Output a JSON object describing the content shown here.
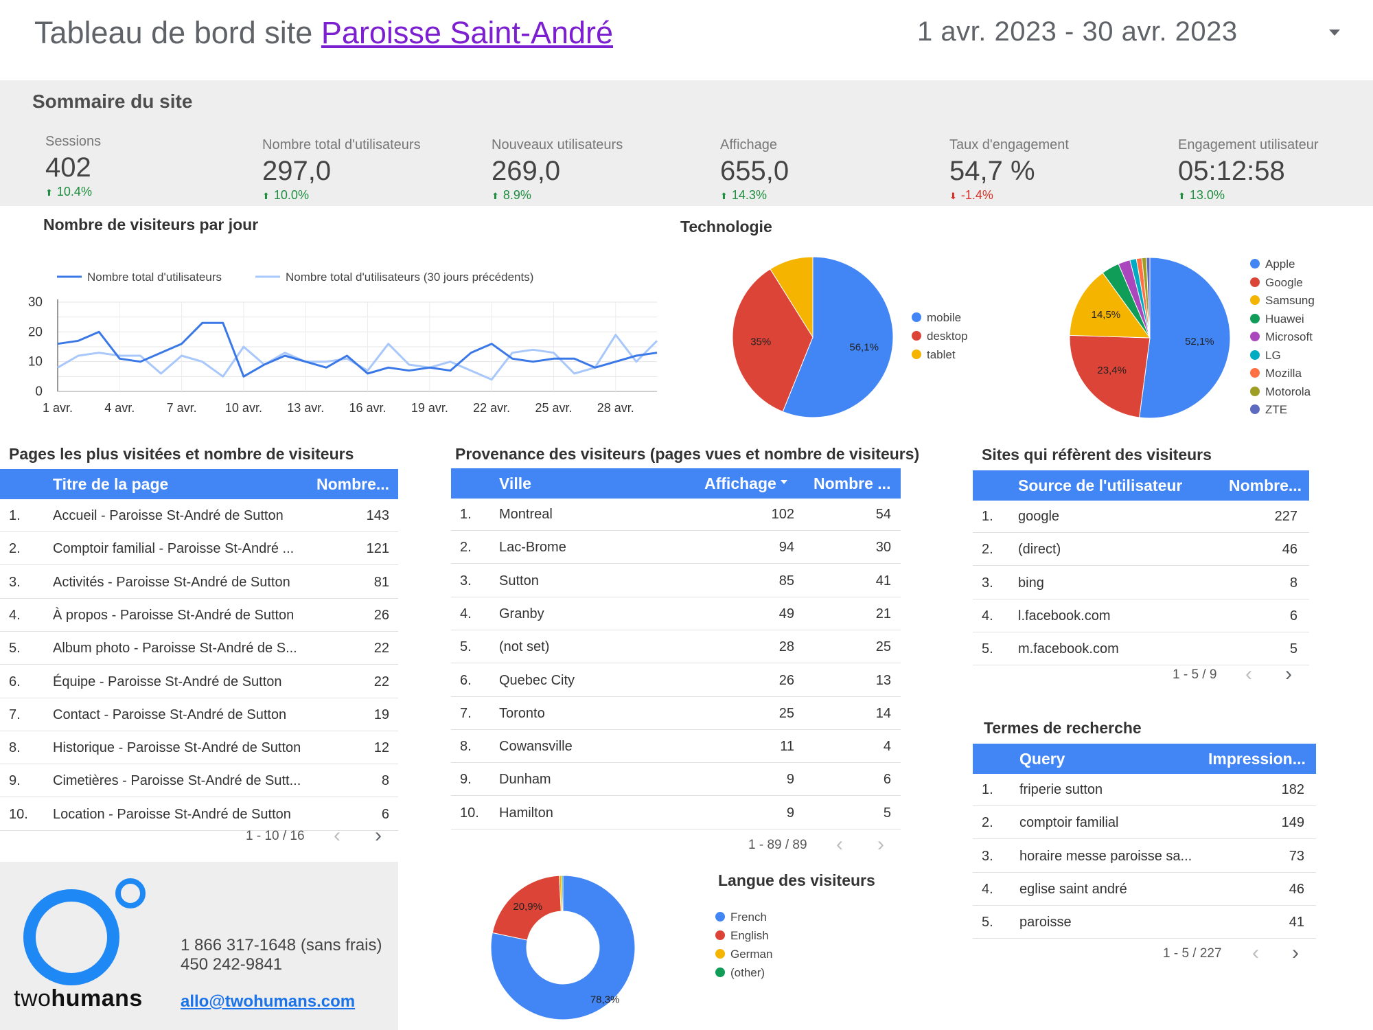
{
  "header": {
    "title_prefix": "Tableau de bord site",
    "title_link": "Paroisse Saint-André",
    "date_range": "1 avr. 2023 - 30 avr. 2023"
  },
  "summary": {
    "title": "Sommaire du site",
    "kpis": [
      {
        "label": "Sessions",
        "value": "402",
        "delta": "10.4%",
        "direction": "up"
      },
      {
        "label": "Nombre total d'utilisateurs",
        "value": "297,0",
        "delta": "10.0%",
        "direction": "up"
      },
      {
        "label": "Nouveaux utilisateurs",
        "value": "269,0",
        "delta": "8.9%",
        "direction": "up"
      },
      {
        "label": "Affichage",
        "value": "655,0",
        "delta": "14.3%",
        "direction": "up"
      },
      {
        "label": "Taux d'engagement",
        "value": "54,7 %",
        "delta": "-1.4%",
        "direction": "down"
      },
      {
        "label": "Engagement utilisateur",
        "value": "05:12:58",
        "delta": "13.0%",
        "direction": "up"
      }
    ]
  },
  "visitors_chart": {
    "title": "Nombre de visiteurs par jour",
    "legend": [
      "Nombre total d'utilisateurs",
      "Nombre total d'utilisateurs (30 jours précédents)"
    ]
  },
  "technology": {
    "title": "Technologie"
  },
  "chart_data": [
    {
      "type": "line",
      "title": "Nombre de visiteurs par jour",
      "x": [
        "1 avr.",
        "2 avr.",
        "3 avr.",
        "4 avr.",
        "5 avr.",
        "6 avr.",
        "7 avr.",
        "8 avr.",
        "9 avr.",
        "10 avr.",
        "11 avr.",
        "12 avr.",
        "13 avr.",
        "14 avr.",
        "15 avr.",
        "16 avr.",
        "17 avr.",
        "18 avr.",
        "19 avr.",
        "20 avr.",
        "21 avr.",
        "22 avr.",
        "23 avr.",
        "24 avr.",
        "25 avr.",
        "26 avr.",
        "27 avr.",
        "28 avr.",
        "29 avr.",
        "30 avr."
      ],
      "xticks": [
        "1 avr.",
        "4 avr.",
        "7 avr.",
        "10 avr.",
        "13 avr.",
        "16 avr.",
        "19 avr.",
        "22 avr.",
        "25 avr.",
        "28 avr."
      ],
      "yticks": [
        0,
        10,
        20,
        30
      ],
      "ylim": [
        0,
        30
      ],
      "grid": true,
      "legend_position": "top",
      "series": [
        {
          "name": "Nombre total d'utilisateurs",
          "color": "#3b78e7",
          "values": [
            16,
            17,
            20,
            11,
            10,
            13,
            16,
            23,
            23,
            5,
            9,
            12,
            10,
            8,
            12,
            6,
            8,
            7,
            8,
            7,
            13,
            16,
            11,
            10,
            11,
            11,
            8,
            10,
            12,
            13
          ]
        },
        {
          "name": "Nombre total d'utilisateurs (30 jours précédents)",
          "color": "#a8c7fa",
          "values": [
            8,
            12,
            13,
            12,
            12,
            6,
            12,
            10,
            5,
            15,
            9,
            13,
            10,
            10,
            11,
            7,
            16,
            9,
            8,
            10,
            7,
            4,
            13,
            14,
            13,
            6,
            8,
            19,
            10,
            17
          ]
        }
      ]
    },
    {
      "type": "pie",
      "title": "",
      "labels": [
        "mobile",
        "desktop",
        "tablet"
      ],
      "values": [
        56.1,
        35.0,
        8.9
      ],
      "colors": [
        "#4285f4",
        "#db4437",
        "#f4b400"
      ],
      "data_labels": [
        "56,1%",
        "35%",
        ""
      ],
      "legend_position": "right"
    },
    {
      "type": "pie",
      "title": "",
      "labels": [
        "Apple",
        "Google",
        "Samsung",
        "Huawei",
        "Microsoft",
        "LG",
        "Mozilla",
        "Motorola",
        "ZTE"
      ],
      "values": [
        52.1,
        23.4,
        14.5,
        3.6,
        2.4,
        1.3,
        1.1,
        0.9,
        0.7
      ],
      "colors": [
        "#4285f4",
        "#db4437",
        "#f4b400",
        "#0f9d58",
        "#ab47bc",
        "#00acc1",
        "#ff7043",
        "#9e9d24",
        "#5c6bc0"
      ],
      "data_labels": [
        "52,1%",
        "23,4%",
        "14,5%",
        "",
        "",
        "",
        "",
        "",
        ""
      ],
      "legend_position": "right"
    },
    {
      "type": "pie",
      "title": "Langue des visiteurs",
      "donut": true,
      "labels": [
        "French",
        "English",
        "German",
        "(other)"
      ],
      "values": [
        78.3,
        20.9,
        0.5,
        0.3
      ],
      "colors": [
        "#4285f4",
        "#db4437",
        "#f4b400",
        "#0f9d58"
      ],
      "data_labels": [
        "78,3%",
        "20,9%",
        "",
        ""
      ],
      "legend_position": "right"
    }
  ],
  "pages_table": {
    "title": "Pages les plus visitées et nombre de visiteurs",
    "columns": [
      "Titre de la page",
      "Nombre..."
    ],
    "rows": [
      {
        "n": "1.",
        "title": "Accueil - Paroisse St-André de Sutton",
        "count": "143"
      },
      {
        "n": "2.",
        "title": "Comptoir familial - Paroisse St-André ...",
        "count": "121"
      },
      {
        "n": "3.",
        "title": "Activités - Paroisse St-André de Sutton",
        "count": "81"
      },
      {
        "n": "4.",
        "title": "À propos - Paroisse St-André de Sutton",
        "count": "26"
      },
      {
        "n": "5.",
        "title": "Album photo - Paroisse St-André de S...",
        "count": "22"
      },
      {
        "n": "6.",
        "title": "Équipe - Paroisse St-André de Sutton",
        "count": "22"
      },
      {
        "n": "7.",
        "title": "Contact - Paroisse St-André de Sutton",
        "count": "19"
      },
      {
        "n": "8.",
        "title": "Historique - Paroisse St-André de Sutton",
        "count": "12"
      },
      {
        "n": "9.",
        "title": "Cimetières - Paroisse St-André de Sutt...",
        "count": "8"
      },
      {
        "n": "10.",
        "title": "Location - Paroisse St-André de Sutton",
        "count": "6"
      }
    ],
    "pager": "1 - 10 / 16"
  },
  "cities_table": {
    "title": "Provenance des visiteurs (pages vues et nombre de visiteurs)",
    "columns": [
      "Ville",
      "Affichage",
      "Nombre ..."
    ],
    "rows": [
      {
        "n": "1.",
        "city": "Montreal",
        "views": "102",
        "count": "54"
      },
      {
        "n": "2.",
        "city": "Lac-Brome",
        "views": "94",
        "count": "30"
      },
      {
        "n": "3.",
        "city": "Sutton",
        "views": "85",
        "count": "41"
      },
      {
        "n": "4.",
        "city": "Granby",
        "views": "49",
        "count": "21"
      },
      {
        "n": "5.",
        "city": "(not set)",
        "views": "28",
        "count": "25"
      },
      {
        "n": "6.",
        "city": "Quebec City",
        "views": "26",
        "count": "13"
      },
      {
        "n": "7.",
        "city": "Toronto",
        "views": "25",
        "count": "14"
      },
      {
        "n": "8.",
        "city": "Cowansville",
        "views": "11",
        "count": "4"
      },
      {
        "n": "9.",
        "city": "Dunham",
        "views": "9",
        "count": "6"
      },
      {
        "n": "10.",
        "city": "Hamilton",
        "views": "9",
        "count": "5"
      }
    ],
    "pager": "1 - 89 / 89"
  },
  "referrers_table": {
    "title": "Sites qui réfèrent des visiteurs",
    "columns": [
      "Source de l'utilisateur",
      "Nombre..."
    ],
    "rows": [
      {
        "n": "1.",
        "source": "google",
        "count": "227"
      },
      {
        "n": "2.",
        "source": "(direct)",
        "count": "46"
      },
      {
        "n": "3.",
        "source": "bing",
        "count": "8"
      },
      {
        "n": "4.",
        "source": "l.facebook.com",
        "count": "6"
      },
      {
        "n": "5.",
        "source": "m.facebook.com",
        "count": "5"
      }
    ],
    "pager": "1 - 5 / 9"
  },
  "search_table": {
    "title": "Termes de recherche",
    "columns": [
      "Query",
      "Impression..."
    ],
    "rows": [
      {
        "n": "1.",
        "query": "friperie sutton",
        "count": "182"
      },
      {
        "n": "2.",
        "query": "comptoir familial",
        "count": "149"
      },
      {
        "n": "3.",
        "query": "horaire messe paroisse sa...",
        "count": "73"
      },
      {
        "n": "4.",
        "query": "eglise saint andré",
        "count": "46"
      },
      {
        "n": "5.",
        "query": "paroisse",
        "count": "41"
      }
    ],
    "pager": "1 - 5 / 227"
  },
  "language": {
    "title": "Langue des visiteurs"
  },
  "footer": {
    "brand_light": "two",
    "brand_bold": "humans",
    "phone1": "1 866 317-1648 (sans frais)",
    "phone2": "450 242-9841",
    "email": "allo@twohumans.com"
  },
  "icons": {
    "sort": "sort-down-icon",
    "prev": "chevron-left-icon",
    "next": "chevron-right-icon",
    "delta_up": "arrow-up-icon",
    "delta_down": "arrow-down-icon",
    "dropdown": "caret-down-icon"
  }
}
